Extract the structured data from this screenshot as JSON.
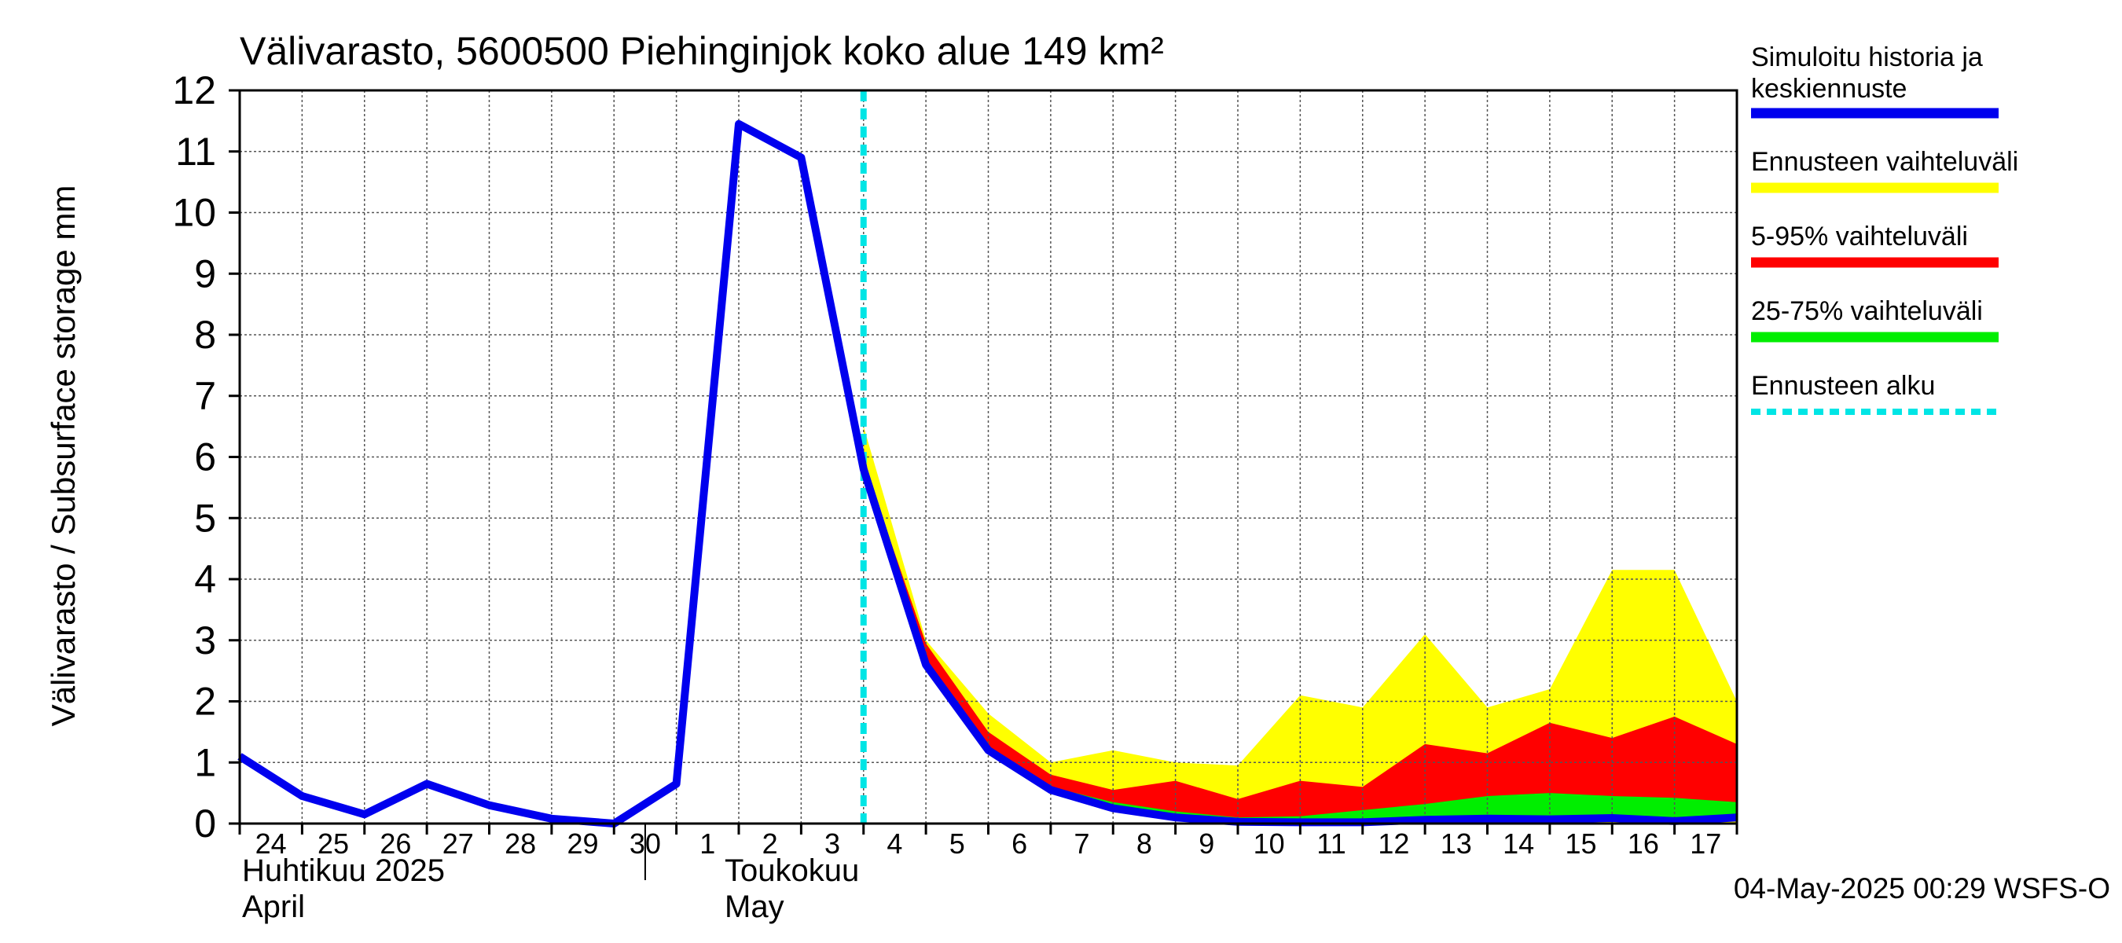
{
  "chart_data": {
    "type": "area",
    "title": "Välivarasto, 5600500 Piehinginjok koko alue 149 km²",
    "ylabel": "Välivarasto / Subsurface storage  mm",
    "xlabel": "",
    "ylim": [
      0,
      12
    ],
    "y_ticks": [
      "0",
      "1",
      "2",
      "3",
      "4",
      "5",
      "6",
      "7",
      "8",
      "9",
      "10",
      "11",
      "12"
    ],
    "x_tick_labels": [
      "24",
      "25",
      "26",
      "27",
      "28",
      "29",
      "30",
      "1",
      "2",
      "3",
      "4",
      "5",
      "6",
      "7",
      "8",
      "9",
      "10",
      "11",
      "12",
      "13",
      "14",
      "15",
      "16",
      "17"
    ],
    "month_labels": [
      {
        "line1": "Huhtikuu  2025",
        "line2": "April"
      },
      {
        "line1": "Toukokuu",
        "line2": "May"
      }
    ],
    "grid": true,
    "legend_position": "right",
    "x": [
      "2025-04-24",
      "2025-04-25",
      "2025-04-26",
      "2025-04-27",
      "2025-04-28",
      "2025-04-29",
      "2025-04-30",
      "2025-05-01",
      "2025-05-02",
      "2025-05-03",
      "2025-05-04",
      "2025-05-05",
      "2025-05-06",
      "2025-05-07",
      "2025-05-08",
      "2025-05-09",
      "2025-05-10",
      "2025-05-11",
      "2025-05-12",
      "2025-05-13",
      "2025-05-14",
      "2025-05-15",
      "2025-05-16",
      "2025-05-17",
      "2025-05-18"
    ],
    "forecast_start": "2025-05-04",
    "series": [
      {
        "name": "Simuloitu historia ja keskiennuste",
        "color": "#0000ee",
        "values": [
          1.1,
          0.45,
          0.15,
          0.65,
          0.3,
          0.08,
          0.0,
          0.65,
          11.45,
          10.9,
          5.8,
          2.6,
          1.2,
          0.55,
          0.25,
          0.1,
          0.03,
          0.02,
          0.02,
          0.06,
          0.08,
          0.07,
          0.09,
          0.04,
          0.1
        ]
      },
      {
        "name": "Ennusteen vaihteluväli",
        "color": "#ffff00",
        "low": [
          null,
          null,
          null,
          null,
          null,
          null,
          null,
          null,
          null,
          null,
          5.8,
          2.5,
          1.15,
          0.5,
          0.2,
          0.05,
          0.0,
          0.0,
          0.0,
          0.0,
          0.0,
          0.0,
          0.0,
          0.0,
          0.0
        ],
        "high": [
          null,
          null,
          null,
          null,
          null,
          null,
          null,
          null,
          null,
          null,
          6.5,
          3.0,
          1.8,
          1.0,
          1.2,
          1.0,
          0.95,
          2.1,
          1.9,
          3.1,
          1.9,
          2.2,
          4.15,
          4.15,
          2.0
        ]
      },
      {
        "name": "5-95% vaihteluväli",
        "color": "#ff0000",
        "low": [
          null,
          null,
          null,
          null,
          null,
          null,
          null,
          null,
          null,
          null,
          5.8,
          2.55,
          1.15,
          0.52,
          0.22,
          0.07,
          0.01,
          0.0,
          0.0,
          0.02,
          0.03,
          0.02,
          0.03,
          0.02,
          0.04
        ],
        "high": [
          null,
          null,
          null,
          null,
          null,
          null,
          null,
          null,
          null,
          null,
          5.9,
          2.95,
          1.5,
          0.8,
          0.55,
          0.7,
          0.4,
          0.7,
          0.6,
          1.3,
          1.15,
          1.65,
          1.4,
          1.75,
          1.3
        ]
      },
      {
        "name": "25-75% vaihteluväli",
        "color": "#00ee00",
        "low": [
          null,
          null,
          null,
          null,
          null,
          null,
          null,
          null,
          null,
          null,
          5.8,
          2.6,
          1.2,
          0.55,
          0.25,
          0.08,
          0.02,
          0.01,
          0.01,
          0.03,
          0.05,
          0.05,
          0.06,
          0.03,
          0.07
        ],
        "high": [
          null,
          null,
          null,
          null,
          null,
          null,
          null,
          null,
          null,
          null,
          5.8,
          2.7,
          1.25,
          0.6,
          0.35,
          0.2,
          0.1,
          0.12,
          0.22,
          0.32,
          0.45,
          0.5,
          0.45,
          0.42,
          0.35
        ]
      },
      {
        "name": "Ennusteen alku",
        "color": "#00e5e5"
      }
    ],
    "legend_entries": [
      {
        "line1": "Simuloitu historia ja",
        "line2": "keskiennuste",
        "color": "#0000ee",
        "style": "solid"
      },
      {
        "line1": "Ennusteen vaihteluväli",
        "line2": "",
        "color": "#ffff00",
        "style": "solid"
      },
      {
        "line1": "5-95% vaihteluväli",
        "line2": "",
        "color": "#ff0000",
        "style": "solid"
      },
      {
        "line1": "25-75% vaihteluväli",
        "line2": "",
        "color": "#00ee00",
        "style": "solid"
      },
      {
        "line1": "Ennusteen alku",
        "line2": "",
        "color": "#00e5e5",
        "style": "dashed"
      }
    ],
    "footer": "04-May-2025 00:29 WSFS-O"
  }
}
